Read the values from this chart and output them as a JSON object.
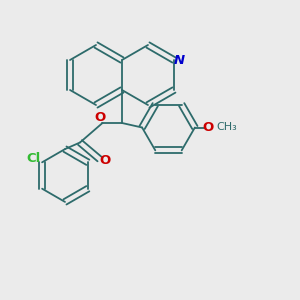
{
  "background_color": "#ebebeb",
  "bond_color": "#2d6b6b",
  "n_color": "#0000cc",
  "o_color": "#cc0000",
  "cl_color": "#33bb33",
  "lw": 1.3,
  "figsize": [
    3.0,
    3.0
  ],
  "dpi": 100,
  "xlim": [
    0.0,
    10.0
  ],
  "ylim": [
    0.5,
    10.5
  ]
}
